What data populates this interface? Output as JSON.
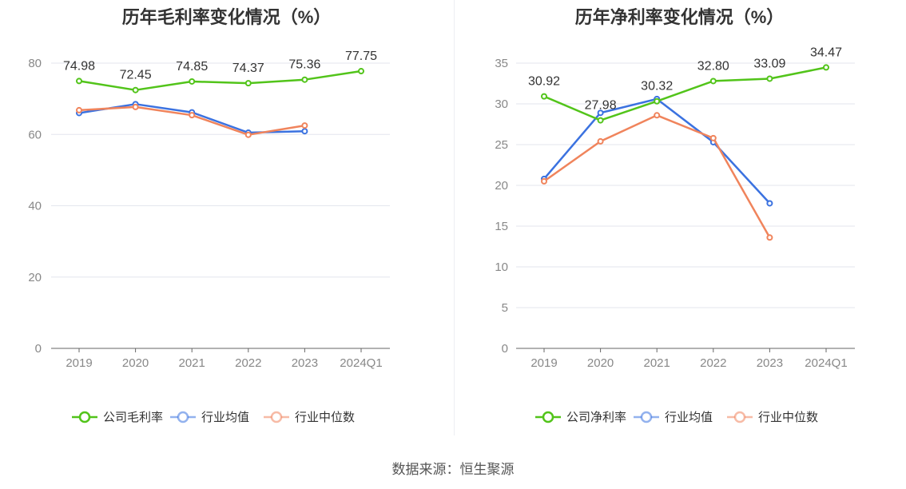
{
  "source_note": "数据来源：恒生聚源",
  "colors": {
    "company": "#52c41a",
    "avg": "#3b72e0",
    "median": "#f0845c"
  },
  "chart_data": [
    {
      "type": "line",
      "title": "历年毛利率变化情况（%）",
      "categories": [
        "2019",
        "2020",
        "2021",
        "2022",
        "2023",
        "2024Q1"
      ],
      "ylim": [
        0,
        80
      ],
      "yticks": [
        0,
        20,
        40,
        60,
        80
      ],
      "legend_position": "bottom",
      "series": [
        {
          "name": "公司毛利率",
          "key": "company",
          "values": [
            74.98,
            72.45,
            74.85,
            74.37,
            75.36,
            77.75
          ],
          "labels": [
            "74.98",
            "72.45",
            "74.85",
            "74.37",
            "75.36",
            "77.75"
          ]
        },
        {
          "name": "行业均值",
          "key": "avg",
          "values": [
            66.0,
            68.5,
            66.2,
            60.5,
            60.9,
            null
          ]
        },
        {
          "name": "行业中位数",
          "key": "median",
          "values": [
            66.8,
            67.7,
            65.4,
            59.9,
            62.5,
            null
          ]
        }
      ]
    },
    {
      "type": "line",
      "title": "历年净利率变化情况（%）",
      "categories": [
        "2019",
        "2020",
        "2021",
        "2022",
        "2023",
        "2024Q1"
      ],
      "ylim": [
        0,
        35
      ],
      "yticks": [
        0,
        5,
        10,
        15,
        20,
        25,
        30,
        35
      ],
      "legend_position": "bottom",
      "series": [
        {
          "name": "公司净利率",
          "key": "company",
          "values": [
            30.92,
            27.98,
            30.32,
            32.8,
            33.09,
            34.47
          ],
          "labels": [
            "30.92",
            "27.98",
            "30.32",
            "32.80",
            "33.09",
            "34.47"
          ]
        },
        {
          "name": "行业均值",
          "key": "avg",
          "values": [
            20.8,
            28.9,
            30.6,
            25.3,
            17.8,
            null
          ]
        },
        {
          "name": "行业中位数",
          "key": "median",
          "values": [
            20.5,
            25.4,
            28.6,
            25.8,
            13.6,
            null
          ]
        }
      ]
    }
  ]
}
